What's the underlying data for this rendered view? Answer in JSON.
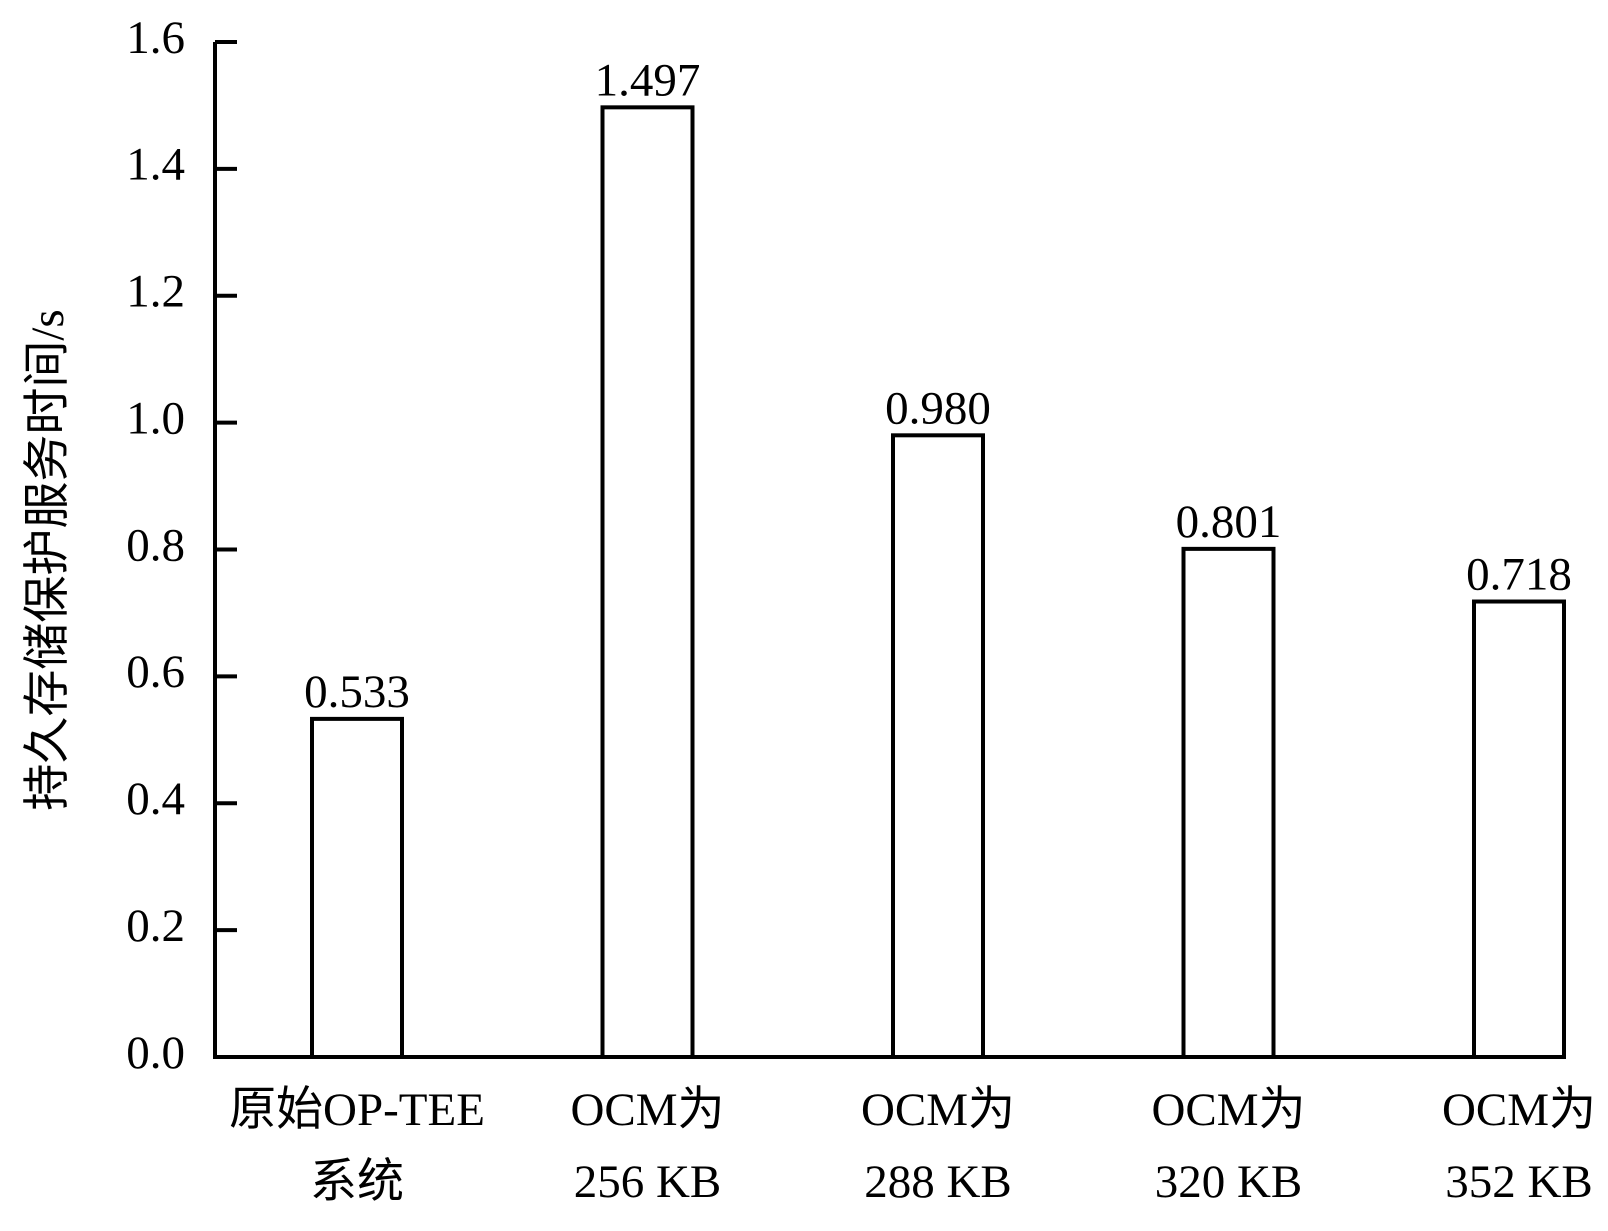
{
  "chart_data": {
    "type": "bar",
    "y_label": "持久存储保护服务时间/s",
    "categories": [
      [
        "原始OP-TEE",
        "系统"
      ],
      [
        "OCM为",
        "256 KB"
      ],
      [
        "OCM为",
        "288 KB"
      ],
      [
        "OCM为",
        "320 KB"
      ],
      [
        "OCM为",
        "352 KB"
      ]
    ],
    "values": [
      0.533,
      1.497,
      0.98,
      0.801,
      0.718
    ],
    "value_labels": [
      "0.533",
      "1.497",
      "0.980",
      "0.801",
      "0.718"
    ],
    "color": "#ffffff",
    "ylim": [
      0,
      1.6
    ],
    "yticks": [
      {
        "value": 0,
        "label": "0.0"
      },
      0.2,
      0.4,
      0.6,
      0.8,
      {
        "value": 1,
        "label": "1.0"
      },
      1.2,
      1.4,
      1.6
    ]
  }
}
